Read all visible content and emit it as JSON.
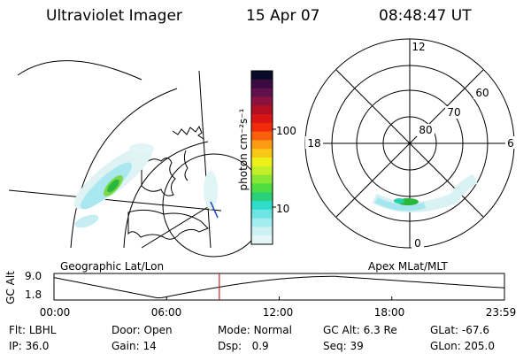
{
  "header": {
    "title": "Ultraviolet Imager",
    "date": "15 Apr 07",
    "time": "08:48:47 UT"
  },
  "colorbar": {
    "label": "photon cm⁻²s⁻¹",
    "ticks": [
      {
        "label": "100",
        "value": 100
      },
      {
        "label": "10",
        "value": 10
      }
    ],
    "colors": [
      "#0a0a2a",
      "#3a0a40",
      "#60104a",
      "#8a1240",
      "#b01020",
      "#d81414",
      "#f02a0a",
      "#f86010",
      "#fc9a14",
      "#f8c818",
      "#eef01c",
      "#c4ee28",
      "#88e634",
      "#4ede42",
      "#28d07a",
      "#30dcc8",
      "#6ee4e4",
      "#a4ecee",
      "#cef2f4",
      "#e6f6f8"
    ]
  },
  "maps": {
    "left_label": "Geographic Lat/Lon",
    "right_label": "Apex MLat/MLT",
    "polar_lat_labels": [
      "80",
      "70",
      "60"
    ],
    "polar_mlt_labels": [
      "12",
      "18",
      "6",
      "0"
    ]
  },
  "altitude_plot": {
    "ylabel": "GC Alt",
    "y_ticks": [
      "9.0",
      "1.8"
    ],
    "x_ticks": [
      "00:00",
      "06:00",
      "12:00",
      "18:00",
      "23:59"
    ],
    "marker_hour": 8.81
  },
  "info": {
    "filter_label": "Flt:",
    "filter_value": "LBHL",
    "ip_label": "IP:",
    "ip_value": "36.0",
    "door_label": "Door:",
    "door_value": "Open",
    "gain_label": "Gain:",
    "gain_value": "14",
    "mode_label": "Mode:",
    "mode_value": "Normal",
    "dsp_label": "Dsp:",
    "dsp_value": "0.9",
    "gcalt_label": "GC Alt:",
    "gcalt_value": "6.3 Re",
    "seq_label": "Seq:",
    "seq_value": "39",
    "glat_label": "GLat:",
    "glat_value": "-67.6",
    "glon_label": "GLon:",
    "glon_value": "205.0"
  },
  "colors": {
    "marker": "#c00000",
    "line": "#000000"
  }
}
